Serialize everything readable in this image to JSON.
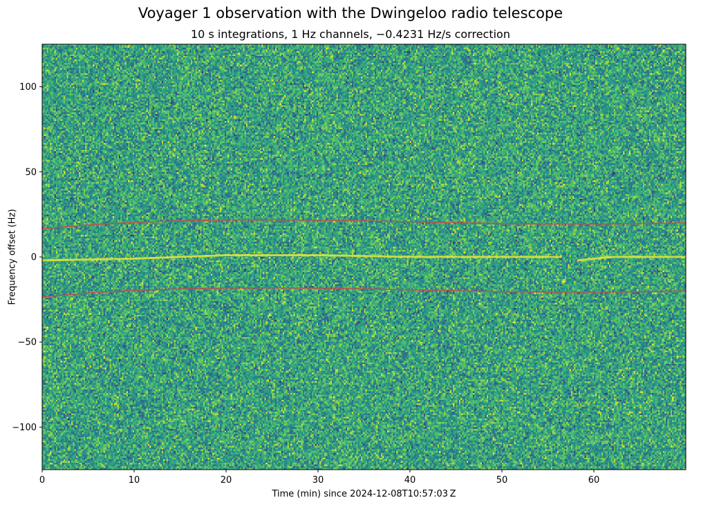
{
  "chart_data": {
    "type": "heatmap",
    "title": "Voyager 1 observation with the Dwingeloo radio telescope",
    "subtitle": "10 s integrations, 1 Hz channels, −0.4231 Hz/s correction",
    "xlabel": "Time (min) since 2024-12-08T10:57:03 Z",
    "ylabel": "Frequency offset (Hz)",
    "xlim": [
      0,
      70
    ],
    "ylim": [
      -125,
      125
    ],
    "xticks": [
      0,
      10,
      20,
      30,
      40,
      50,
      60
    ],
    "xtick_labels": [
      "0",
      "10",
      "20",
      "30",
      "40",
      "50",
      "60"
    ],
    "yticks": [
      100,
      50,
      0,
      -50,
      -100
    ],
    "ytick_labels": [
      "100",
      "50",
      "0",
      "−50",
      "−100"
    ],
    "colormap": "viridis",
    "grid": false,
    "signal": {
      "description_values": "carrier trace near 0 Hz offset",
      "x": [
        0,
        10,
        20,
        30,
        40,
        47,
        50,
        56,
        58,
        62,
        70
      ],
      "y": [
        -2,
        -1,
        1,
        1,
        0,
        0,
        0,
        0,
        0,
        0,
        0
      ]
    },
    "overlay_lines": [
      {
        "color": "#c0504d",
        "x": [
          0,
          5,
          10,
          15,
          20,
          25,
          30,
          35,
          40,
          45,
          50,
          55,
          60,
          65,
          70
        ],
        "y": [
          16.5,
          18.8,
          20.3,
          21.2,
          21.7,
          21.8,
          21.6,
          21.2,
          20.7,
          20.1,
          19.6,
          19.3,
          19.3,
          19.6,
          20.0
        ]
      },
      {
        "color": "#c0504d",
        "x": [
          0,
          5,
          10,
          15,
          20,
          25,
          30,
          35,
          40,
          45,
          50,
          55,
          60,
          65,
          70
        ],
        "y": [
          -23.5,
          -21.2,
          -19.7,
          -18.8,
          -18.3,
          -18.2,
          -18.4,
          -18.8,
          -19.3,
          -19.9,
          -20.4,
          -20.7,
          -20.7,
          -20.4,
          -20.0
        ]
      }
    ]
  }
}
